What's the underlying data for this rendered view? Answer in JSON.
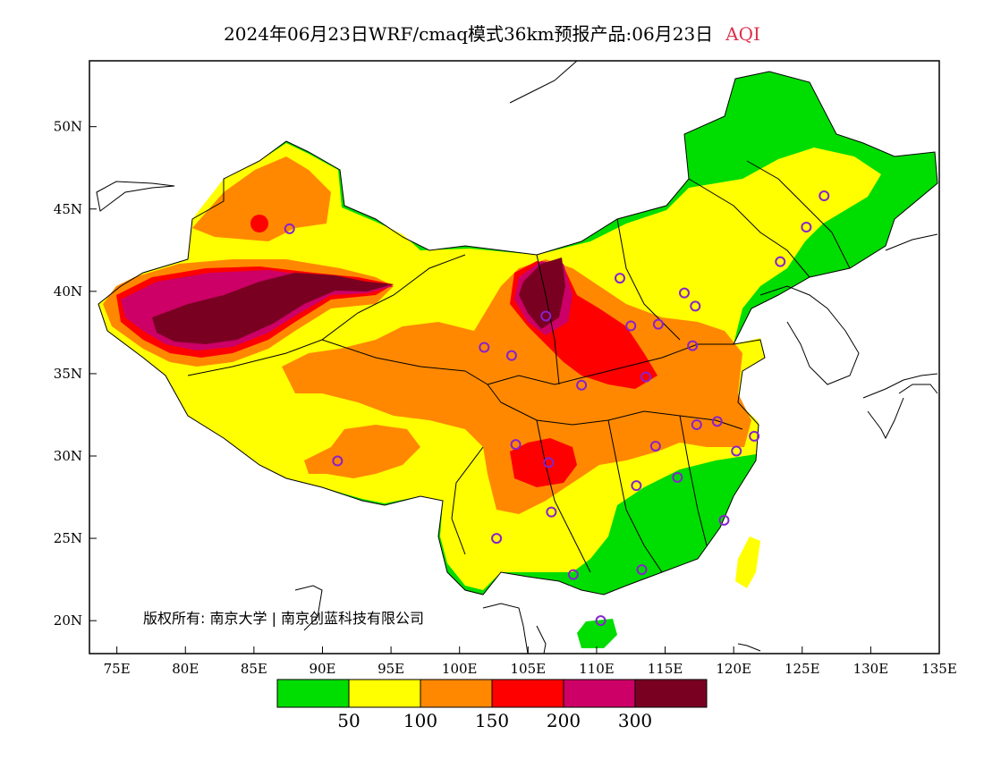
{
  "title": {
    "main": "2024年06月23日WRF/cmaq模式36km预报产品:06月23日",
    "variable": "AQI"
  },
  "map": {
    "lon_range": [
      73,
      135
    ],
    "lat_range": [
      18,
      54
    ],
    "lon_ticks": [
      "75E",
      "80E",
      "85E",
      "90E",
      "95E",
      "100E",
      "105E",
      "110E",
      "115E",
      "120E",
      "125E",
      "130E",
      "135E"
    ],
    "lat_ticks": [
      "20N",
      "25N",
      "30N",
      "35N",
      "40N",
      "45N",
      "50N"
    ],
    "copyright": "版权所有: 南京大学 | 南京创蓝科技有限公司"
  },
  "legend": {
    "colors": [
      "#00dd00",
      "#ffff00",
      "#ff8800",
      "#ff0000",
      "#cc0066",
      "#7a0022"
    ],
    "labels": [
      "50",
      "100",
      "150",
      "200",
      "300"
    ]
  },
  "stations": [
    {
      "lon": 87.6,
      "lat": 43.8
    },
    {
      "lon": 91.1,
      "lat": 29.7
    },
    {
      "lon": 101.8,
      "lat": 36.6
    },
    {
      "lon": 103.8,
      "lat": 36.1
    },
    {
      "lon": 106.3,
      "lat": 38.5
    },
    {
      "lon": 111.7,
      "lat": 40.8
    },
    {
      "lon": 112.5,
      "lat": 37.9
    },
    {
      "lon": 114.5,
      "lat": 38.0
    },
    {
      "lon": 116.4,
      "lat": 39.9
    },
    {
      "lon": 117.2,
      "lat": 39.1
    },
    {
      "lon": 117.0,
      "lat": 36.7
    },
    {
      "lon": 113.6,
      "lat": 34.8
    },
    {
      "lon": 108.9,
      "lat": 34.3
    },
    {
      "lon": 104.1,
      "lat": 30.7
    },
    {
      "lon": 106.5,
      "lat": 29.6
    },
    {
      "lon": 106.7,
      "lat": 26.6
    },
    {
      "lon": 102.7,
      "lat": 25.0
    },
    {
      "lon": 108.3,
      "lat": 22.8
    },
    {
      "lon": 110.3,
      "lat": 20.0
    },
    {
      "lon": 113.3,
      "lat": 23.1
    },
    {
      "lon": 112.9,
      "lat": 28.2
    },
    {
      "lon": 114.3,
      "lat": 30.6
    },
    {
      "lon": 115.9,
      "lat": 28.7
    },
    {
      "lon": 117.3,
      "lat": 31.9
    },
    {
      "lon": 118.8,
      "lat": 32.1
    },
    {
      "lon": 120.2,
      "lat": 30.3
    },
    {
      "lon": 121.5,
      "lat": 31.2
    },
    {
      "lon": 119.3,
      "lat": 26.1
    },
    {
      "lon": 123.4,
      "lat": 41.8
    },
    {
      "lon": 125.3,
      "lat": 43.9
    },
    {
      "lon": 126.6,
      "lat": 45.8
    }
  ]
}
